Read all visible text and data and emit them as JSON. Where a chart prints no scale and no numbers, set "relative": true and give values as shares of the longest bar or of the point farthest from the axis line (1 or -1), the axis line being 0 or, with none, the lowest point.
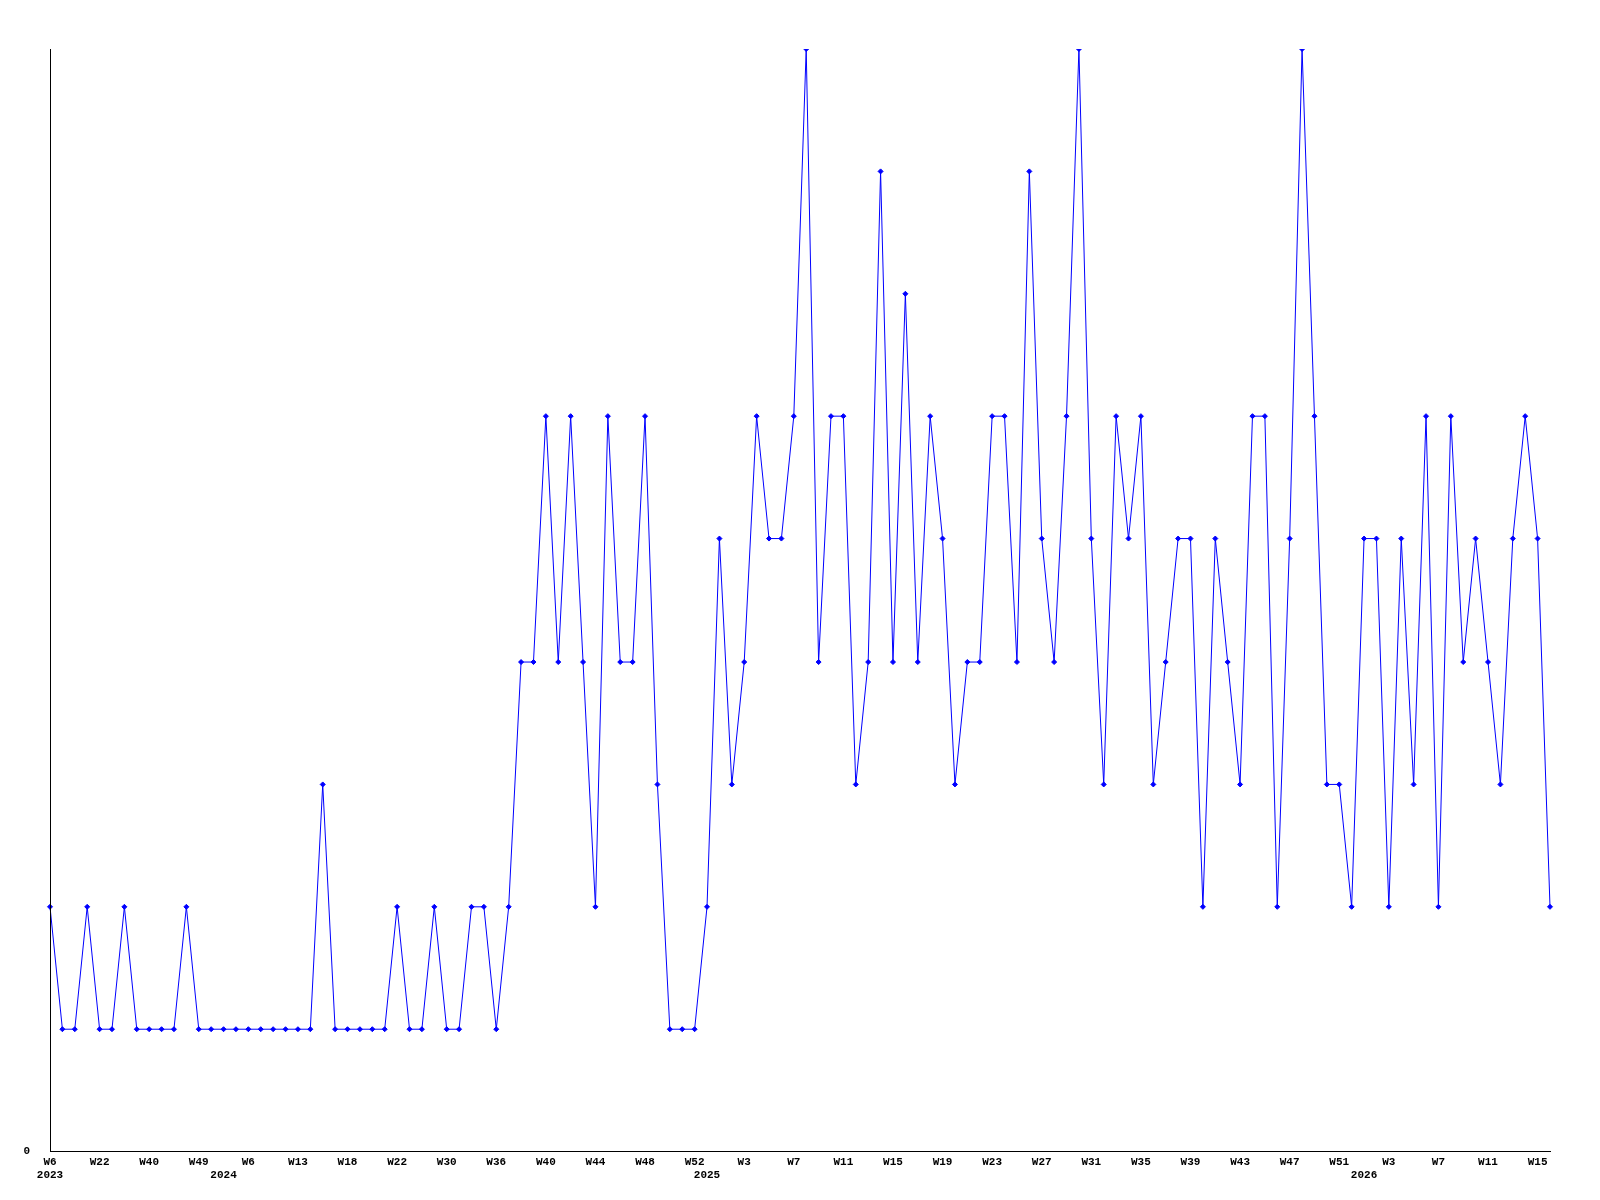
{
  "chart_data": {
    "type": "line",
    "relative": true,
    "color": "#0000ff",
    "marker": "diamond",
    "annotations": [
      "0"
    ],
    "categories": [
      "W6\n2023",
      null,
      null,
      null,
      "W22",
      null,
      null,
      null,
      "W40",
      null,
      null,
      null,
      "W49",
      null,
      "\n2024",
      null,
      "W6",
      null,
      null,
      null,
      "W13",
      null,
      null,
      null,
      "W18",
      null,
      null,
      null,
      "W22",
      null,
      null,
      null,
      "W30",
      null,
      null,
      null,
      "W36",
      null,
      null,
      null,
      "W40",
      null,
      null,
      null,
      "W44",
      null,
      null,
      null,
      "W48",
      null,
      null,
      null,
      "W52",
      "\n2025",
      null,
      null,
      "W3",
      null,
      null,
      null,
      "W7",
      null,
      null,
      null,
      "W11",
      null,
      null,
      null,
      "W15",
      null,
      null,
      null,
      "W19",
      null,
      null,
      null,
      "W23",
      null,
      null,
      null,
      "W27",
      null,
      null,
      null,
      "W31",
      null,
      null,
      null,
      "W35",
      null,
      null,
      null,
      "W39",
      null,
      null,
      null,
      "W43",
      null,
      null,
      null,
      "W47",
      null,
      null,
      null,
      "W51",
      null,
      "\n2026",
      null,
      "W3",
      null,
      null,
      null,
      "W7",
      null,
      null,
      null,
      "W11",
      null,
      null,
      null,
      "W15",
      null
    ],
    "values": [
      0.222,
      0.111,
      0.111,
      0.222,
      0.111,
      0.111,
      0.222,
      0.111,
      0.111,
      0.111,
      0.111,
      0.222,
      0.111,
      0.111,
      0.111,
      0.111,
      0.111,
      0.111,
      0.111,
      0.111,
      0.111,
      0.111,
      0.333,
      0.111,
      0.111,
      0.111,
      0.111,
      0.111,
      0.222,
      0.111,
      0.111,
      0.222,
      0.111,
      0.111,
      0.222,
      0.222,
      0.111,
      0.222,
      0.444,
      0.444,
      0.667,
      0.444,
      0.667,
      0.444,
      0.222,
      0.667,
      0.444,
      0.444,
      0.667,
      0.333,
      0.111,
      0.111,
      0.111,
      0.222,
      0.556,
      0.333,
      0.444,
      0.667,
      0.556,
      0.556,
      0.667,
      1,
      0.444,
      0.667,
      0.667,
      0.333,
      0.444,
      0.889,
      0.444,
      0.778,
      0.444,
      0.667,
      0.556,
      0.333,
      0.444,
      0.444,
      0.667,
      0.667,
      0.444,
      0.889,
      0.556,
      0.444,
      0.667,
      1,
      0.556,
      0.333,
      0.667,
      0.556,
      0.667,
      0.333,
      0.444,
      0.556,
      0.556,
      0.222,
      0.556,
      0.444,
      0.333,
      0.667,
      0.667,
      0.222,
      0.556,
      1,
      0.667,
      0.333,
      0.333,
      0.222,
      0.556,
      0.556,
      0.222,
      0.556,
      0.333,
      0.667,
      0.222,
      0.667,
      0.444,
      0.556,
      0.444,
      0.333,
      0.556,
      0.667,
      0.556,
      0.222
    ]
  }
}
